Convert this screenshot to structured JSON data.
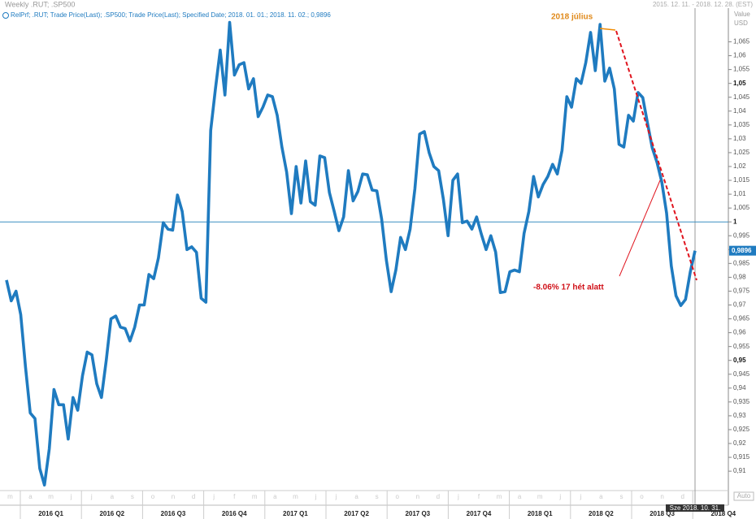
{
  "chart_data": {
    "type": "line",
    "title": "Weekly .RUT; .SP500",
    "date_range": "2015. 12. 11. - 2018. 12. 28. (EST)",
    "legend_text": "RelPrf; .RUT; Trade Price(Last); .SP500; Trade Price(Last); Specified Date; 2018. 01. 01.; 2018. 11. 02.; 0,9896",
    "y_axis_label": "Value",
    "y_axis_unit": "USD",
    "series": [
      {
        "name": "RelPrf",
        "color": "#1f7bc0",
        "values": [
          0.979,
          0.9715,
          0.975,
          0.9665,
          0.9475,
          0.931,
          0.929,
          0.911,
          0.905,
          0.918,
          0.9395,
          0.934,
          0.934,
          0.9216,
          0.9366,
          0.932,
          0.9445,
          0.953,
          0.952,
          0.9416,
          0.9366,
          0.95,
          0.965,
          0.966,
          0.962,
          0.9615,
          0.957,
          0.962,
          0.97,
          0.97,
          0.981,
          0.9795,
          0.987,
          0.9997,
          0.9974,
          0.997,
          1.0097,
          1.0038,
          0.99,
          0.991,
          0.989,
          0.9724,
          0.971,
          1.033,
          1.048,
          1.062,
          1.0458,
          1.072,
          1.053,
          1.0567,
          1.0575,
          1.048,
          1.0517,
          1.038,
          1.0414,
          1.0458,
          1.0452,
          1.0385,
          1.027,
          1.018,
          1.003,
          1.02,
          1.0068,
          1.022,
          1.0073,
          1.006,
          1.0238,
          1.0232,
          1.0106,
          1.0038,
          0.9968,
          1.0018,
          1.0185,
          1.0076,
          1.011,
          1.0173,
          1.017,
          1.0115,
          1.0112,
          1.001,
          0.9862,
          0.9748,
          0.9827,
          0.9944,
          0.99,
          0.9974,
          1.012,
          1.0317,
          1.0326,
          1.025,
          1.02,
          1.0185,
          1.0082,
          0.995,
          1.015,
          1.0173,
          0.9997,
          1.0003,
          0.9974,
          1.0018,
          0.9956,
          0.99,
          0.995,
          0.9891,
          0.9745,
          0.9748,
          0.982,
          0.9826,
          0.982,
          0.9959,
          1.0038,
          1.0164,
          1.009,
          1.0135,
          1.0164,
          1.0208,
          1.0173,
          1.0258,
          1.0452,
          1.0414,
          1.0517,
          1.05,
          1.0575,
          1.0684,
          1.0546,
          1.0713,
          1.0508,
          1.0555,
          1.048,
          1.028,
          1.027,
          1.0385,
          1.0364,
          1.0467,
          1.0449,
          1.0355,
          1.0267,
          1.0214,
          1.0144,
          1.0032,
          0.9841,
          0.9733,
          0.9698,
          0.972,
          0.982,
          0.9896
        ]
      }
    ],
    "last_value_label": "0,9896",
    "reference_line": 1,
    "ylim": [
      0.903,
      1.076
    ],
    "yticks": [
      {
        "value": 0.91,
        "label": "0,91"
      },
      {
        "value": 0.915,
        "label": "0,915"
      },
      {
        "value": 0.92,
        "label": "0,92"
      },
      {
        "value": 0.925,
        "label": "0,925"
      },
      {
        "value": 0.93,
        "label": "0,93"
      },
      {
        "value": 0.935,
        "label": "0,935"
      },
      {
        "value": 0.94,
        "label": "0,94"
      },
      {
        "value": 0.945,
        "label": "0,945"
      },
      {
        "value": 0.95,
        "label": "0,95"
      },
      {
        "value": 0.955,
        "label": "0,955"
      },
      {
        "value": 0.96,
        "label": "0,96"
      },
      {
        "value": 0.965,
        "label": "0,965"
      },
      {
        "value": 0.97,
        "label": "0,97"
      },
      {
        "value": 0.975,
        "label": "0,975"
      },
      {
        "value": 0.98,
        "label": "0,98"
      },
      {
        "value": 0.985,
        "label": "0,985"
      },
      {
        "value": 0.99,
        "label": "0,99"
      },
      {
        "value": 0.995,
        "label": "0,995"
      },
      1,
      {
        "value": 1.005,
        "label": "1,005"
      },
      {
        "value": 1.01,
        "label": "1,01"
      },
      {
        "value": 1.015,
        "label": "1,015"
      },
      {
        "value": 1.02,
        "label": "1,02"
      },
      {
        "value": 1.025,
        "label": "1,025"
      },
      {
        "value": 1.03,
        "label": "1,03"
      },
      {
        "value": 1.035,
        "label": "1,035"
      },
      {
        "value": 1.04,
        "label": "1,04"
      },
      {
        "value": 1.045,
        "label": "1,045"
      },
      {
        "value": 1.05,
        "label": "1,05"
      },
      {
        "value": 1.055,
        "label": "1,055"
      },
      {
        "value": 1.06,
        "label": "1,06"
      },
      {
        "value": 1.065,
        "label": "1,065"
      }
    ],
    "quarters": [
      "2016 Q1",
      "2016 Q2",
      "2016 Q3",
      "2016 Q4",
      "2017 Q1",
      "2017 Q2",
      "2017 Q3",
      "2017 Q4",
      "2018 Q1",
      "2018 Q2",
      "2018 Q3",
      "2018 Q4"
    ],
    "months": [
      "j",
      "f",
      "m",
      "a",
      "m",
      "j",
      "j",
      "a",
      "s",
      "o",
      "n",
      "d",
      "j",
      "f",
      "m",
      "a",
      "m",
      "j",
      "j",
      "a",
      "s",
      "o",
      "n",
      "d",
      "j",
      "f",
      "m",
      "a",
      "m",
      "j",
      "j",
      "a",
      "s",
      "o",
      "n",
      "d"
    ],
    "cursor_label": "Sze 2018. 10. 31.",
    "auto_label": "Auto",
    "annotations": [
      "2018 július",
      "-8.06% 17 hét alatt"
    ]
  }
}
